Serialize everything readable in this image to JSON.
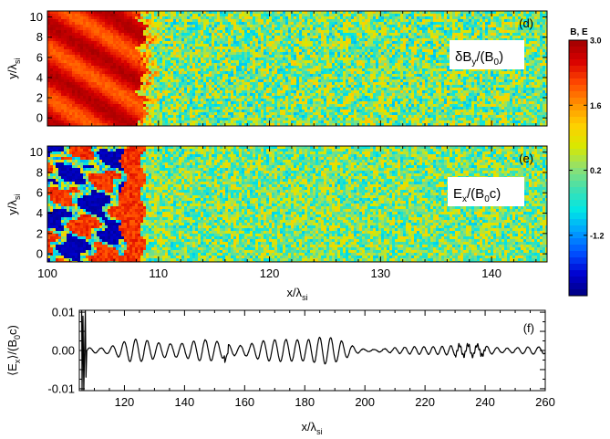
{
  "chart_data": [
    {
      "id": "d",
      "type": "heatmap",
      "panel_label": "(d)",
      "quantity_label": {
        "main": "δB",
        "sub": "y",
        "tail": "/(B",
        "sub2": "0",
        "end": ")"
      },
      "ylabel": {
        "main": "y/λ",
        "sub": "si"
      },
      "x_range": [
        100,
        145
      ],
      "y_range": [
        -0.8,
        10.6
      ],
      "y_ticks": [
        "0",
        "2",
        "4",
        "6",
        "8",
        "10"
      ],
      "shock_front_x": 108.5,
      "regions": [
        {
          "x_from": 100,
          "x_to": 108.5,
          "typical_value": 2.6,
          "description": "downstream compressed field (red)"
        },
        {
          "x_from": 108.5,
          "x_to": 145,
          "typical_value": 0.2,
          "description": "upstream fluctuations (cyan/green)"
        }
      ]
    },
    {
      "id": "e",
      "type": "heatmap",
      "panel_label": "(e)",
      "quantity_label": {
        "main": "E",
        "sub": "x",
        "tail": "/(B",
        "sub2": "0",
        "end": "c)"
      },
      "ylabel": {
        "main": "y/λ",
        "sub": "si"
      },
      "xlabel": {
        "main": "x/λ",
        "sub": "si"
      },
      "x_range": [
        100,
        145
      ],
      "x_ticks": [
        "100",
        "110",
        "120",
        "130",
        "140"
      ],
      "y_range": [
        -0.8,
        10.6
      ],
      "y_ticks": [
        "0",
        "2",
        "4",
        "6",
        "8",
        "10"
      ],
      "shock_front_x": 108.0,
      "regions": [
        {
          "x_from": 100,
          "x_to": 107,
          "typical_value": -1.5,
          "description": "mixed blue/red patches"
        },
        {
          "x_from": 107,
          "x_to": 108.5,
          "typical_value": 2.5,
          "description": "red band at shock"
        },
        {
          "x_from": 108.5,
          "x_to": 145,
          "typical_value": 0.2,
          "description": "upstream fluctuations"
        }
      ]
    },
    {
      "id": "f",
      "type": "line",
      "panel_label": "(f)",
      "ylabel": {
        "open": "⟨E",
        "sub": "x",
        "close": "⟩/(B",
        "sub2": "0",
        "end": "c)"
      },
      "xlabel": {
        "main": "x/λ",
        "sub": "si"
      },
      "x_range": [
        105,
        260
      ],
      "x_ticks": [
        "120",
        "140",
        "160",
        "180",
        "200",
        "220",
        "240",
        "260"
      ],
      "y_range": [
        -0.0105,
        0.0105
      ],
      "y_ticks": [
        "-0.01",
        "0.00",
        "0.01"
      ],
      "series": [
        {
          "envelope": [
            [
              108,
              0.0012
            ],
            [
              112,
              0.0016
            ],
            [
              122,
              0.0031
            ],
            [
              130,
              0.0024
            ],
            [
              140,
              0.002
            ],
            [
              150,
              0.0033
            ],
            [
              154,
              0.0036
            ],
            [
              160,
              0.0029
            ],
            [
              170,
              0.0027
            ],
            [
              178,
              0.0034
            ],
            [
              186,
              0.0037
            ],
            [
              192,
              0.0027
            ],
            [
              200,
              0.0007
            ],
            [
              215,
              0.0009
            ],
            [
              225,
              0.0013
            ],
            [
              240,
              0.0016
            ],
            [
              250,
              0.0014
            ],
            [
              260,
              0.0008
            ]
          ],
          "wavelength": [
            [
              108,
              3.8
            ],
            [
              150,
              3.9
            ],
            [
              200,
              3.6
            ],
            [
              232,
              2.8
            ],
            [
              240,
              3.3
            ],
            [
              260,
              3.6
            ]
          ],
          "near_shock_spikes": [
            [
              105.8,
              0.0105
            ],
            [
              105.9,
              -0.0105
            ],
            [
              106.2,
              0.009
            ],
            [
              106.5,
              -0.0105
            ],
            [
              107.0,
              0.0105
            ],
            [
              107.2,
              -0.007
            ]
          ]
        }
      ]
    }
  ],
  "colorbar": {
    "title": "B, E",
    "range": [
      -2.5,
      3.0
    ],
    "tick_labels": [
      "3.0",
      "1.6",
      "0.2",
      "-1.2"
    ],
    "tick_values": [
      3.0,
      1.6,
      0.2,
      -1.2
    ]
  },
  "colors": {
    "stops": [
      "#000080",
      "#0000d0",
      "#0050ff",
      "#00a0ff",
      "#00e6e6",
      "#40e0b0",
      "#90e070",
      "#d8e800",
      "#ffd000",
      "#ff9000",
      "#ff4800",
      "#d80000",
      "#a00000"
    ]
  }
}
